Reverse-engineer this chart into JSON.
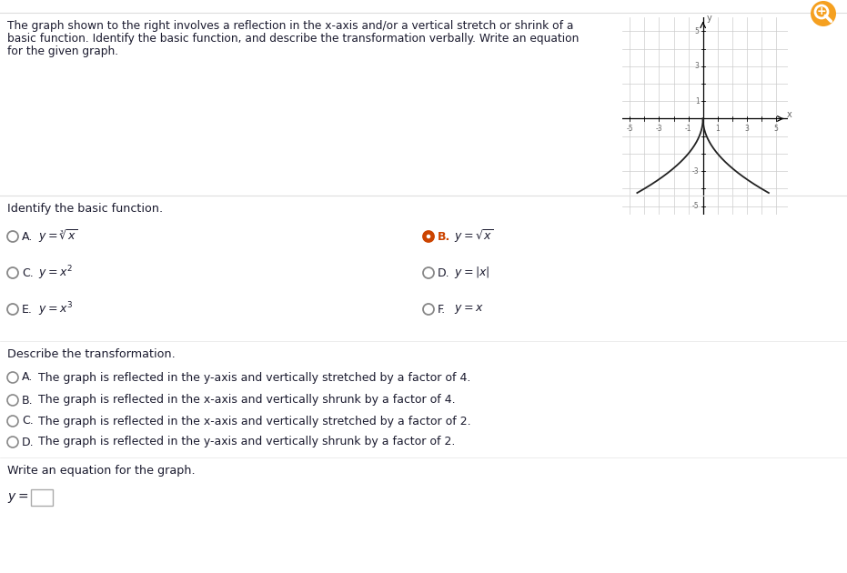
{
  "title_line1": "The graph shown to the right involves a reflection in the x-axis and/or a vertical stretch or shrink of a",
  "title_line2": "basic function. Identify the basic function, and describe the transformation verbally. Write an equation",
  "title_line3": "for the given graph.",
  "section1_label": "Identify the basic function.",
  "options_basic": [
    {
      "letter": "A.",
      "formula": "$y = \\sqrt[3]{x}$",
      "col": 0,
      "selected": false
    },
    {
      "letter": "B.",
      "formula": "$y = \\sqrt{x}$",
      "col": 1,
      "selected": true
    },
    {
      "letter": "C.",
      "formula": "$y = x^2$",
      "col": 0,
      "selected": false
    },
    {
      "letter": "D.",
      "formula": "$y = |x|$",
      "col": 1,
      "selected": false
    },
    {
      "letter": "E.",
      "formula": "$y = x^3$",
      "col": 0,
      "selected": false
    },
    {
      "letter": "F.",
      "formula": "$y = x$",
      "col": 1,
      "selected": false
    }
  ],
  "section2_label": "Describe the transformation.",
  "options_transform": [
    {
      "letter": "A.",
      "text": "The graph is reflected in the y-axis and vertically stretched by a factor of 4."
    },
    {
      "letter": "B.",
      "text": "The graph is reflected in the x-axis and vertically shrunk by a factor of 4."
    },
    {
      "letter": "C.",
      "text": "The graph is reflected in the x-axis and vertically stretched by a factor of 2."
    },
    {
      "letter": "D.",
      "text": "The graph is reflected in the y-axis and vertically shrunk by a factor of 2."
    }
  ],
  "section3_label": "Write an equation for the graph.",
  "bg_color": "#ffffff",
  "text_color": "#1a1a2e",
  "orange_color": "#cc4400",
  "gray_color": "#888888",
  "divider_color": "#dddddd",
  "graph_curve_color": "#222222",
  "grid_color": "#cccccc",
  "axis_tick_label_color": "#666666"
}
